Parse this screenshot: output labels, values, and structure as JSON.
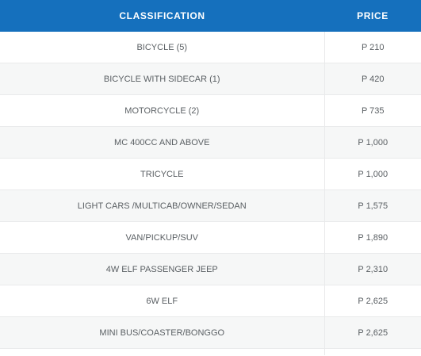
{
  "table": {
    "headers": {
      "classification": "CLASSIFICATION",
      "price": "PRICE"
    },
    "rows": [
      {
        "classification": "BICYCLE (5)",
        "price": "P 210"
      },
      {
        "classification": "BICYCLE WITH SIDECAR (1)",
        "price": "P 420"
      },
      {
        "classification": "MOTORCYCLE (2)",
        "price": "P 735"
      },
      {
        "classification": "MC 400CC AND ABOVE",
        "price": "P 1,000"
      },
      {
        "classification": "TRICYCLE",
        "price": "P 1,000"
      },
      {
        "classification": "LIGHT CARS /MULTICAB/OWNER/SEDAN",
        "price": "P 1,575"
      },
      {
        "classification": "VAN/PICKUP/SUV",
        "price": "P 1,890"
      },
      {
        "classification": "4W ELF PASSENGER JEEP",
        "price": "P 2,310"
      },
      {
        "classification": "6W ELF",
        "price": "P 2,625"
      },
      {
        "classification": "MINI BUS/COASTER/BONGGO",
        "price": "P 2,625"
      }
    ]
  },
  "colors": {
    "header_background": "#1570bd",
    "header_text": "#ffffff",
    "row_alternate": "#f6f7f7",
    "cell_text": "#5a5f63"
  }
}
